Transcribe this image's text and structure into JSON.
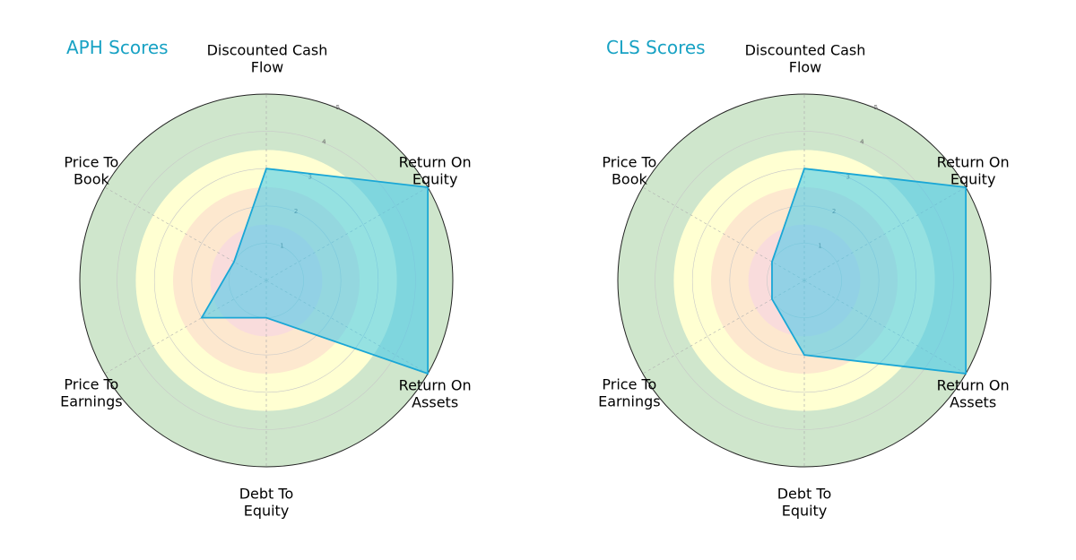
{
  "chart_data": [
    {
      "type": "radar",
      "title": "APH Scores",
      "axes": [
        "Discounted Cash\nFlow",
        "Return On\nEquity",
        "Return On\nAssets",
        "Debt To\nEquity",
        "Price To\nEarnings",
        "Price To\nBook"
      ],
      "values": [
        3,
        5,
        5,
        1,
        2,
        1
      ],
      "rlim": [
        0,
        5
      ],
      "rticks": [
        "1",
        "2",
        "3",
        "4",
        "5"
      ]
    },
    {
      "type": "radar",
      "title": "CLS Scores",
      "axes": [
        "Discounted Cash\nFlow",
        "Return On\nEquity",
        "Return On\nAssets",
        "Debt To\nEquity",
        "Price To\nEarnings",
        "Price To\nBook"
      ],
      "values": [
        3,
        5,
        5,
        2,
        1,
        1
      ],
      "rlim": [
        0,
        5
      ],
      "rticks": [
        "1",
        "2",
        "3",
        "4",
        "5"
      ]
    }
  ],
  "style": {
    "title_color": "#18a2c4",
    "fill_color": "#3ec8ec",
    "line_color": "#1aa7d6",
    "band_colors": [
      "#f9dcdc",
      "#fde8cf",
      "#ffffd2",
      "#cfe6cc"
    ],
    "spoke_color": "#b0b0b0"
  }
}
